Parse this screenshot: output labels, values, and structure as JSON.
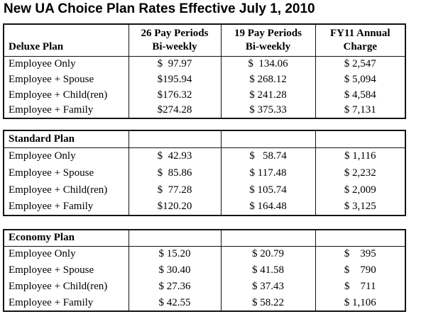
{
  "title": "New UA Choice Plan Rates Effective July 1, 2010",
  "columns": [
    {
      "line1": "26 Pay Periods",
      "line2": "Bi-weekly"
    },
    {
      "line1": "19 Pay Periods",
      "line2": "Bi-weekly"
    },
    {
      "line1": "FY11 Annual",
      "line2": "Charge"
    }
  ],
  "tables": [
    {
      "plan": "Deluxe Plan",
      "rows": [
        {
          "label": "Employee Only",
          "pay26": "$  97.97",
          "pay19": "$  134.06",
          "annual": "$ 2,547"
        },
        {
          "label": "Employee + Spouse",
          "pay26": "$195.94",
          "pay19": "$ 268.12",
          "annual": "$ 5,094"
        },
        {
          "label": "Employee + Child(ren)",
          "pay26": "$176.32",
          "pay19": "$ 241.28",
          "annual": "$ 4,584"
        },
        {
          "label": "Employee + Family",
          "pay26": "$274.28",
          "pay19": "$ 375.33",
          "annual": "$ 7,131"
        }
      ]
    },
    {
      "plan": "Standard Plan",
      "rows": [
        {
          "label": "Employee Only",
          "pay26": "$  42.93",
          "pay19": "$   58.74",
          "annual": "$ 1,116"
        },
        {
          "label": "Employee + Spouse",
          "pay26": "$  85.86",
          "pay19": "$ 117.48",
          "annual": "$ 2,232"
        },
        {
          "label": "Employee + Child(ren)",
          "pay26": "$  77.28",
          "pay19": "$ 105.74",
          "annual": "$ 2,009"
        },
        {
          "label": "Employee + Family",
          "pay26": "$120.20",
          "pay19": "$ 164.48",
          "annual": "$ 3,125"
        }
      ]
    },
    {
      "plan": "Economy Plan",
      "rows": [
        {
          "label": "Employee Only",
          "pay26": "$ 15.20",
          "pay19": "$ 20.79",
          "annual": "$    395"
        },
        {
          "label": "Employee + Spouse",
          "pay26": "$ 30.40",
          "pay19": "$ 41.58",
          "annual": "$    790"
        },
        {
          "label": "Employee + Child(ren)",
          "pay26": "$ 27.36",
          "pay19": "$ 37.43",
          "annual": "$    711"
        },
        {
          "label": "Employee + Family",
          "pay26": "$ 42.55",
          "pay19": "$ 58.22",
          "annual": "$ 1,106"
        }
      ]
    }
  ],
  "colors": {
    "text": "#000000",
    "border": "#141414",
    "background": "#ffffff"
  }
}
